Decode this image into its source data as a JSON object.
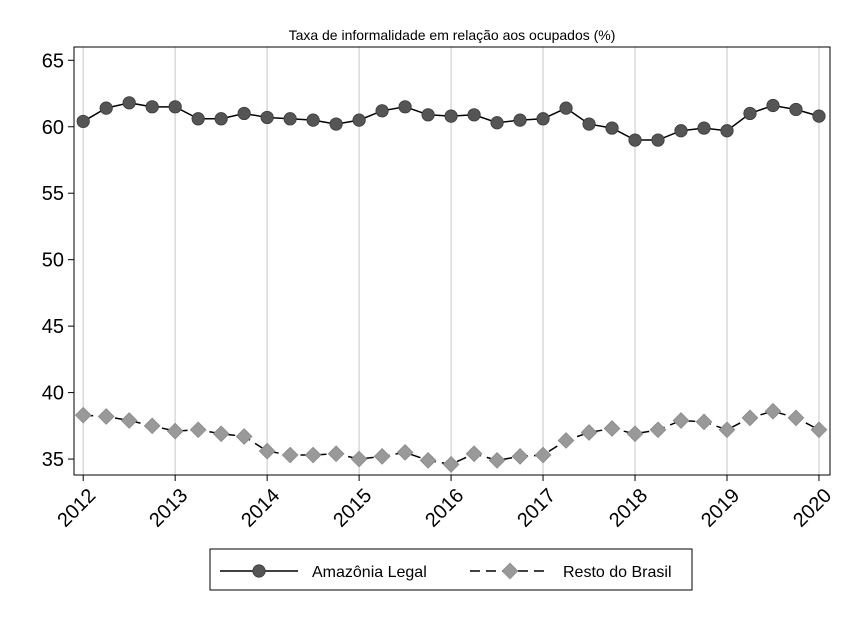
{
  "chart_data": {
    "type": "line",
    "title": "Taxa de informalidade em relação aos ocupados (%)",
    "xlabel": "",
    "ylabel": "",
    "x": [
      2012.0,
      2012.25,
      2012.5,
      2012.75,
      2013.0,
      2013.25,
      2013.5,
      2013.75,
      2014.0,
      2014.25,
      2014.5,
      2014.75,
      2015.0,
      2015.25,
      2015.5,
      2015.75,
      2016.0,
      2016.25,
      2016.5,
      2016.75,
      2017.0,
      2017.25,
      2017.5,
      2017.75,
      2018.0,
      2018.25,
      2018.5,
      2018.75,
      2019.0,
      2019.25,
      2019.5,
      2019.75,
      2020.0
    ],
    "xlim": [
      2011.9,
      2020.12
    ],
    "ylim": [
      33.8,
      66.0
    ],
    "xticks": [
      {
        "value": 2012,
        "label": "2012"
      },
      {
        "value": 2013,
        "label": "2013"
      },
      {
        "value": 2014,
        "label": "2014"
      },
      {
        "value": 2015,
        "label": "2015"
      },
      {
        "value": 2016,
        "label": "2016"
      },
      {
        "value": 2017,
        "label": "2017"
      },
      {
        "value": 2018,
        "label": "2018"
      },
      {
        "value": 2019,
        "label": "2019"
      },
      {
        "value": 2020,
        "label": "2020"
      }
    ],
    "yticks": [
      {
        "value": 35,
        "label": "35"
      },
      {
        "value": 40,
        "label": "40"
      },
      {
        "value": 45,
        "label": "45"
      },
      {
        "value": 50,
        "label": "50"
      },
      {
        "value": 55,
        "label": "55"
      },
      {
        "value": 60,
        "label": "60"
      },
      {
        "value": 65,
        "label": "65"
      }
    ],
    "grid": "vertical at year ticks",
    "legend": "bottom, outside plot",
    "series": [
      {
        "name": "Amazônia Legal",
        "color": "#555555",
        "line": "solid",
        "marker": "circle",
        "values": [
          60.4,
          61.4,
          61.8,
          61.5,
          61.5,
          60.6,
          60.6,
          61.0,
          60.7,
          60.6,
          60.5,
          60.2,
          60.5,
          61.2,
          61.5,
          60.9,
          60.8,
          60.9,
          60.3,
          60.5,
          60.6,
          61.4,
          60.2,
          59.9,
          59.0,
          59.0,
          59.7,
          59.9,
          59.7,
          61.0,
          61.6,
          61.3,
          60.8
        ]
      },
      {
        "name": "Resto do Brasil",
        "color": "#999999",
        "line": "dashed",
        "marker": "diamond",
        "values": [
          38.3,
          38.2,
          37.9,
          37.5,
          37.1,
          37.2,
          36.9,
          36.7,
          35.6,
          35.3,
          35.3,
          35.4,
          35.0,
          35.2,
          35.5,
          34.9,
          34.6,
          35.4,
          34.9,
          35.2,
          35.3,
          36.4,
          37.0,
          37.3,
          36.9,
          37.2,
          37.9,
          37.8,
          37.2,
          38.1,
          38.6,
          38.1,
          37.2
        ]
      }
    ]
  }
}
